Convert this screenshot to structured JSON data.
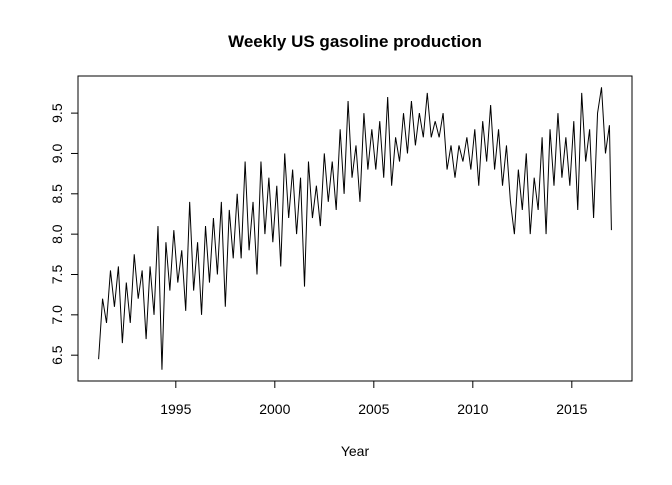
{
  "chart_data": {
    "type": "line",
    "title": "Weekly US gasoline production",
    "x_label": "Year",
    "x": [
      1991.1,
      1991.3,
      1991.5,
      1991.7,
      1991.9,
      1992.1,
      1992.3,
      1992.5,
      1992.7,
      1992.9,
      1993.1,
      1993.3,
      1993.5,
      1993.7,
      1993.9,
      1994.1,
      1994.3,
      1994.5,
      1994.7,
      1994.9,
      1995.1,
      1995.3,
      1995.5,
      1995.7,
      1995.9,
      1996.1,
      1996.3,
      1996.5,
      1996.7,
      1996.9,
      1997.1,
      1997.3,
      1997.5,
      1997.7,
      1997.9,
      1998.1,
      1998.3,
      1998.5,
      1998.7,
      1998.9,
      1999.1,
      1999.3,
      1999.5,
      1999.7,
      1999.9,
      2000.1,
      2000.3,
      2000.5,
      2000.7,
      2000.9,
      2001.1,
      2001.3,
      2001.5,
      2001.7,
      2001.9,
      2002.1,
      2002.3,
      2002.5,
      2002.7,
      2002.9,
      2003.1,
      2003.3,
      2003.5,
      2003.7,
      2003.9,
      2004.1,
      2004.3,
      2004.5,
      2004.7,
      2004.9,
      2005.1,
      2005.3,
      2005.5,
      2005.7,
      2005.9,
      2006.1,
      2006.3,
      2006.5,
      2006.7,
      2006.9,
      2007.1,
      2007.3,
      2007.5,
      2007.7,
      2007.9,
      2008.1,
      2008.3,
      2008.5,
      2008.7,
      2008.9,
      2009.1,
      2009.3,
      2009.5,
      2009.7,
      2009.9,
      2010.1,
      2010.3,
      2010.5,
      2010.7,
      2010.9,
      2011.1,
      2011.3,
      2011.5,
      2011.7,
      2011.9,
      2012.1,
      2012.3,
      2012.5,
      2012.7,
      2012.9,
      2013.1,
      2013.3,
      2013.5,
      2013.7,
      2013.9,
      2014.1,
      2014.3,
      2014.5,
      2014.7,
      2014.9,
      2015.1,
      2015.3,
      2015.5,
      2015.7,
      2015.9,
      2016.1,
      2016.3,
      2016.5,
      2016.7,
      2016.9,
      2017.0
    ],
    "series": [
      {
        "color": "#000000",
        "values": [
          6.45,
          7.2,
          6.9,
          7.55,
          7.1,
          7.6,
          6.65,
          7.4,
          6.9,
          7.75,
          7.2,
          7.55,
          6.7,
          7.6,
          7.0,
          8.1,
          6.32,
          7.9,
          7.3,
          8.05,
          7.4,
          7.8,
          7.05,
          8.4,
          7.3,
          7.9,
          7.0,
          8.1,
          7.4,
          8.2,
          7.5,
          8.4,
          7.1,
          8.3,
          7.7,
          8.5,
          7.7,
          8.9,
          7.8,
          8.4,
          7.5,
          8.9,
          8.0,
          8.7,
          7.9,
          8.6,
          7.6,
          9.0,
          8.2,
          8.8,
          8.0,
          8.7,
          7.35,
          8.9,
          8.2,
          8.6,
          8.1,
          9.0,
          8.4,
          8.9,
          8.3,
          9.3,
          8.5,
          9.65,
          8.7,
          9.1,
          8.4,
          9.5,
          8.8,
          9.3,
          8.8,
          9.4,
          8.7,
          9.7,
          8.6,
          9.2,
          8.9,
          9.5,
          9.0,
          9.65,
          9.1,
          9.5,
          9.2,
          9.75,
          9.2,
          9.4,
          9.2,
          9.5,
          8.8,
          9.1,
          8.7,
          9.1,
          8.9,
          9.2,
          8.8,
          9.3,
          8.6,
          9.4,
          8.9,
          9.6,
          8.8,
          9.3,
          8.6,
          9.1,
          8.4,
          8.0,
          8.8,
          8.3,
          9.0,
          8.0,
          8.7,
          8.3,
          9.2,
          8.0,
          9.3,
          8.6,
          9.5,
          8.7,
          9.2,
          8.6,
          9.4,
          8.3,
          9.75,
          8.9,
          9.3,
          8.2,
          9.5,
          9.82,
          9.0,
          9.35,
          8.05
        ]
      }
    ],
    "xlim": [
      1990.06,
      2018.04
    ],
    "ylim": [
      6.18,
      9.96
    ],
    "xticks": [
      1995,
      2000,
      2005,
      2010,
      2015
    ],
    "yticks": [
      6.5,
      {
        "value": 7,
        "label": "7.0"
      },
      7.5,
      {
        "value": 8,
        "label": "8.0"
      },
      8.5,
      {
        "value": 9,
        "label": "9.0"
      },
      9.5
    ]
  }
}
